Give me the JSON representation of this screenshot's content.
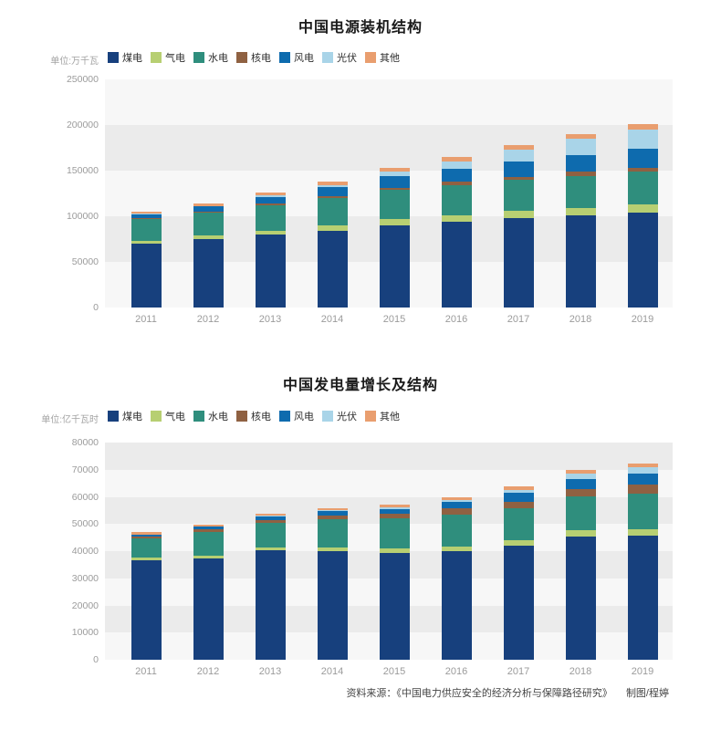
{
  "footer": {
    "source": "资料来源：《中国电力供应安全的经济分析与保障路径研究》",
    "credit": "制图/程婷"
  },
  "chart_data": [
    {
      "type": "bar",
      "stacked": true,
      "title": "中国电源装机结构",
      "unit_label": "单位:万千瓦",
      "legend_position": "top",
      "grid": "alternating-horizontal-bands",
      "categories": [
        "2011",
        "2012",
        "2013",
        "2014",
        "2015",
        "2016",
        "2017",
        "2018",
        "2019"
      ],
      "ylim": [
        0,
        250000
      ],
      "ytick_step": 50000,
      "series": [
        {
          "id": "coal",
          "name": "煤电",
          "color": "#17407d",
          "values": [
            70000,
            75000,
            80000,
            84000,
            90000,
            94000,
            98000,
            101000,
            104000
          ]
        },
        {
          "id": "gas",
          "name": "气电",
          "color": "#b7cf72",
          "values": [
            3300,
            3800,
            4300,
            5600,
            6600,
            7000,
            7600,
            8300,
            9000
          ]
        },
        {
          "id": "hydro",
          "name": "水电",
          "color": "#2f8e7d",
          "values": [
            23300,
            24900,
            28000,
            30500,
            32000,
            33200,
            34100,
            35200,
            35600
          ]
        },
        {
          "id": "nuclear",
          "name": "核电",
          "color": "#8f6142",
          "values": [
            1260,
            1260,
            1470,
            2010,
            2720,
            3360,
            3580,
            4470,
            4870
          ]
        },
        {
          "id": "wind",
          "name": "风电",
          "color": "#0e6bae",
          "values": [
            4620,
            6140,
            7650,
            9660,
            13100,
            14750,
            16370,
            18430,
            21000
          ]
        },
        {
          "id": "solar",
          "name": "光伏",
          "color": "#a9d4e8",
          "values": [
            210,
            340,
            1590,
            2490,
            4320,
            7740,
            13030,
            17450,
            20470
          ]
        },
        {
          "id": "other",
          "name": "其他",
          "color": "#e99e6f",
          "values": [
            2000,
            2500,
            3000,
            3500,
            4000,
            4500,
            5000,
            5500,
            6000
          ]
        }
      ]
    },
    {
      "type": "bar",
      "stacked": true,
      "title": "中国发电量增长及结构",
      "unit_label": "单位:亿千瓦时",
      "legend_position": "top",
      "grid": "alternating-horizontal-bands",
      "categories": [
        "2011",
        "2012",
        "2013",
        "2014",
        "2015",
        "2016",
        "2017",
        "2018",
        "2019"
      ],
      "ylim": [
        0,
        80000
      ],
      "ytick_step": 10000,
      "series": [
        {
          "id": "coal",
          "name": "煤电",
          "color": "#17407d",
          "values": [
            36700,
            37300,
            40400,
            40000,
            39300,
            40000,
            41900,
            45500,
            45800
          ]
        },
        {
          "id": "gas",
          "name": "气电",
          "color": "#b7cf72",
          "values": [
            900,
            1000,
            1100,
            1300,
            1600,
            1800,
            2000,
            2200,
            2300
          ]
        },
        {
          "id": "hydro",
          "name": "水电",
          "color": "#2f8e7d",
          "values": [
            6990,
            8720,
            8920,
            10600,
            11130,
            11820,
            11950,
            12330,
            13020
          ]
        },
        {
          "id": "nuclear",
          "name": "核电",
          "color": "#8f6142",
          "values": [
            870,
            980,
            1120,
            1330,
            1710,
            2130,
            2480,
            2940,
            3490
          ]
        },
        {
          "id": "wind",
          "name": "风电",
          "color": "#0e6bae",
          "values": [
            740,
            1030,
            1380,
            1600,
            1860,
            2410,
            3060,
            3700,
            4100
          ]
        },
        {
          "id": "solar",
          "name": "光伏",
          "color": "#a9d4e8",
          "values": [
            10,
            40,
            90,
            240,
            400,
            660,
            1180,
            1780,
            2240
          ]
        },
        {
          "id": "other",
          "name": "其他",
          "color": "#e99e6f",
          "values": [
            800,
            800,
            900,
            900,
            1000,
            1200,
            1300,
            1400,
            1500
          ]
        }
      ]
    }
  ]
}
